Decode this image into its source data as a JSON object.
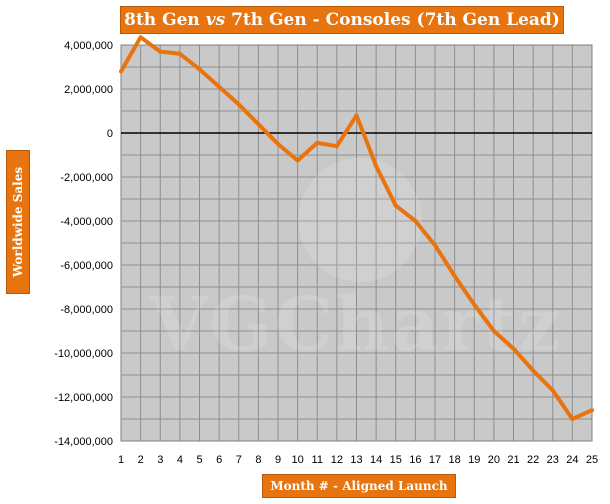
{
  "chart_data": {
    "type": "line",
    "title": "8th Gen vs 7th Gen - Consoles (7th Gen Lead)",
    "title_parts": [
      "8th Gen ",
      "vs",
      " 7th Gen - Consoles (7th Gen Lead)"
    ],
    "xlabel": "Month # - Aligned Launch",
    "ylabel": "Worldwide Sales",
    "x": [
      1,
      2,
      3,
      4,
      5,
      6,
      7,
      8,
      9,
      10,
      11,
      12,
      13,
      14,
      15,
      16,
      17,
      18,
      19,
      20,
      21,
      22,
      23,
      24,
      25
    ],
    "y_ticks": [
      4000000,
      2000000,
      0,
      -2000000,
      -4000000,
      -6000000,
      -8000000,
      -10000000,
      -12000000,
      -14000000
    ],
    "y_tick_labels": [
      "4,000,000",
      "2,000,000",
      "0",
      "-2,000,000",
      "-4,000,000",
      "-6,000,000",
      "-8,000,000",
      "-10,000,000",
      "-12,000,000",
      "-14,000,000"
    ],
    "x_tick_labels": [
      "1",
      "2",
      "3",
      "4",
      "5",
      "6",
      "7",
      "8",
      "9",
      "10",
      "11",
      "12",
      "13",
      "14",
      "15",
      "16",
      "17",
      "18",
      "19",
      "20",
      "21",
      "22",
      "23",
      "24",
      "25"
    ],
    "ylim": [
      -14000000,
      4000000
    ],
    "xlim": [
      1,
      25
    ],
    "grid": true,
    "series": [
      {
        "values": [
          2800000,
          4350000,
          3700000,
          3600000,
          2900000,
          2100000,
          1300000,
          400000,
          -500000,
          -1250000,
          -450000,
          -600000,
          800000,
          -1500000,
          -3300000,
          -4000000,
          -5100000,
          -6500000,
          -7800000,
          -9000000,
          -9800000,
          -10800000,
          -11700000,
          -13000000,
          -12600000
        ],
        "color": "#e8740f"
      }
    ],
    "watermark": "VGChartz"
  }
}
